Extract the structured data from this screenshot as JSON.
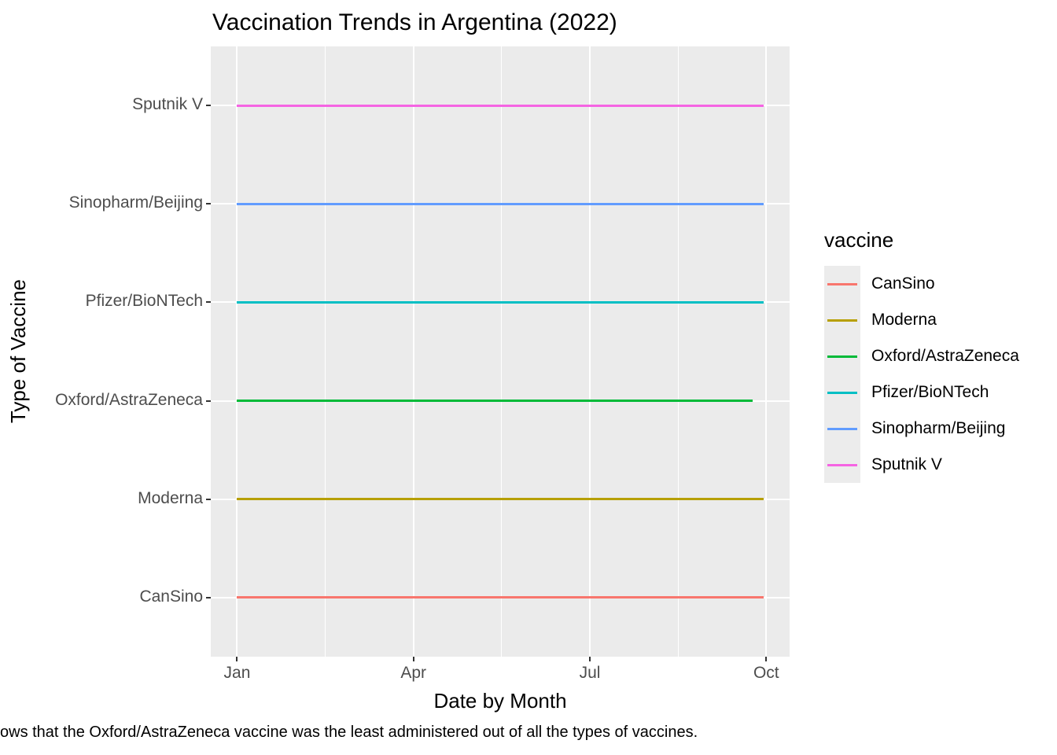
{
  "caption": "ows that the Oxford/AstraZeneca vaccine was the least administered out of all the types of vaccines.",
  "legend": {
    "title": "vaccine",
    "entries": [
      {
        "label": "CanSino",
        "color": "#F8766D"
      },
      {
        "label": "Moderna",
        "color": "#B79F00"
      },
      {
        "label": "Oxford/AstraZeneca",
        "color": "#00BA38"
      },
      {
        "label": "Pfizer/BioNTech",
        "color": "#00BFC4"
      },
      {
        "label": "Sinopharm/Beijing",
        "color": "#619CFF"
      },
      {
        "label": "Sputnik V",
        "color": "#F564E3"
      }
    ]
  },
  "chart_data": {
    "type": "line",
    "title": "Vaccination Trends in Argentina (2022)",
    "xlabel": "Date by Month",
    "ylabel": "Type of Vaccine",
    "x_unit": "month of 2022 (1 = Jan, 10 = Oct)",
    "x_data_range": [
      1,
      9.95
    ],
    "x_ticks": [
      {
        "value": 1,
        "label": "Jan"
      },
      {
        "value": 4,
        "label": "Apr"
      },
      {
        "value": 7,
        "label": "Jul"
      },
      {
        "value": 10,
        "label": "Oct"
      }
    ],
    "x_minor_ticks": [
      2.5,
      5.5,
      8.5
    ],
    "categories_bottom_to_top": [
      "CanSino",
      "Moderna",
      "Oxford/AstraZeneca",
      "Pfizer/BioNTech",
      "Sinopharm/Beijing",
      "Sputnik V"
    ],
    "series": [
      {
        "name": "CanSino",
        "category": "CanSino",
        "color": "#F8766D",
        "x_start": 1,
        "x_end": 9.95
      },
      {
        "name": "Moderna",
        "category": "Moderna",
        "color": "#B79F00",
        "x_start": 1,
        "x_end": 9.95
      },
      {
        "name": "Oxford/AstraZeneca",
        "category": "Oxford/AstraZeneca",
        "color": "#00BA38",
        "x_start": 1,
        "x_end": 9.77
      },
      {
        "name": "Pfizer/BioNTech",
        "category": "Pfizer/BioNTech",
        "color": "#00BFC4",
        "x_start": 1,
        "x_end": 9.95
      },
      {
        "name": "Sinopharm/Beijing",
        "category": "Sinopharm/Beijing",
        "color": "#619CFF",
        "x_start": 1,
        "x_end": 9.95
      },
      {
        "name": "Sputnik V",
        "category": "Sputnik V",
        "color": "#F564E3",
        "x_start": 1,
        "x_end": 9.95
      }
    ],
    "legend_position": "right",
    "grid": true,
    "colors": {
      "panel_background": "#EBEBEB",
      "gridline": "#FFFFFF",
      "tick_mark": "#333333",
      "tick_label": "#4D4D4D",
      "legend_key_background": "#ECECEC"
    }
  }
}
